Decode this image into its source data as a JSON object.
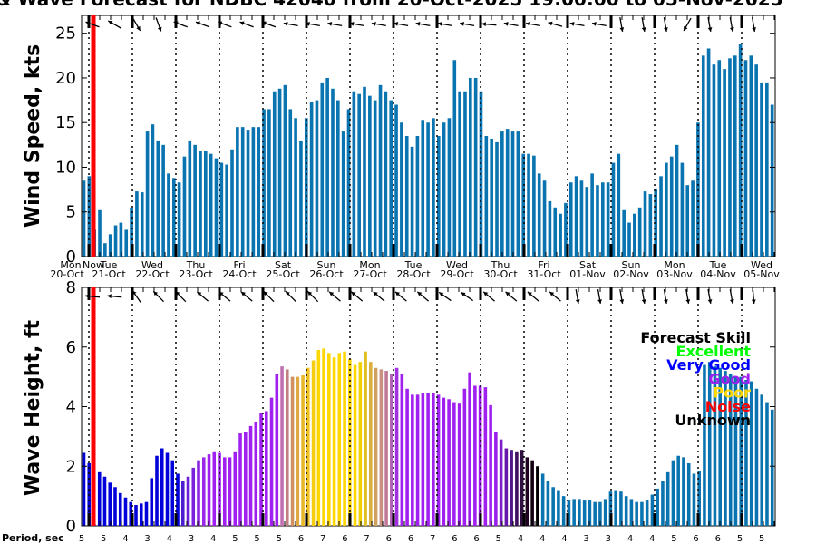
{
  "chart_data": [
    {
      "type": "bar",
      "title": "& Wave Forecast for NDBC 42040 from 20-Oct-2025 19:00:00 to 05-Nov-2025",
      "ylabel": "Wind Speed, kts",
      "ylim": [
        0,
        27
      ],
      "yticks": [
        0,
        5,
        10,
        15,
        20,
        25
      ],
      "day_labels": [
        {
          "day": "Mon",
          "date": "20-Oct"
        },
        {
          "day": "Tue",
          "date": "21-Oct"
        },
        {
          "day": "Wed",
          "date": "22-Oct"
        },
        {
          "day": "Thu",
          "date": "23-Oct"
        },
        {
          "day": "Fri",
          "date": "24-Oct"
        },
        {
          "day": "Sat",
          "date": "25-Oct"
        },
        {
          "day": "Sun",
          "date": "26-Oct"
        },
        {
          "day": "Mon",
          "date": "27-Oct"
        },
        {
          "day": "Tue",
          "date": "28-Oct"
        },
        {
          "day": "Wed",
          "date": "29-Oct"
        },
        {
          "day": "Thu",
          "date": "30-Oct"
        },
        {
          "day": "Fri",
          "date": "31-Oct"
        },
        {
          "day": "Sat",
          "date": "01-Nov"
        },
        {
          "day": "Sun",
          "date": "02-Nov"
        },
        {
          "day": "Mon",
          "date": "03-Nov"
        },
        {
          "day": "Tue",
          "date": "04-Nov"
        },
        {
          "day": "Wed",
          "date": "05-Nov"
        }
      ],
      "now_label": "Now",
      "bar_color": "#0a74b0",
      "values": [
        8.5,
        9,
        3,
        5.2,
        1.5,
        2.5,
        3.5,
        3.8,
        3,
        5.5,
        7.3,
        7.2,
        14,
        14.8,
        13,
        12.5,
        9.3,
        8.8,
        8.3,
        11.2,
        13,
        12.5,
        11.8,
        11.8,
        11.5,
        11,
        10.5,
        10.3,
        12,
        14.5,
        14.5,
        14.2,
        14.5,
        14.5,
        16.5,
        16.5,
        18.5,
        18.8,
        19.2,
        16.5,
        15.5,
        13,
        15.5,
        17.3,
        17.5,
        19.5,
        20,
        18.8,
        17.5,
        14,
        16.5,
        18.5,
        18.2,
        19,
        18,
        17.5,
        19.2,
        18.5,
        17.5,
        17,
        15,
        13.5,
        12.3,
        13.5,
        15.3,
        15,
        15.5,
        13.5,
        15,
        15.5,
        22,
        18.5,
        18.5,
        20,
        20,
        18.5,
        13.5,
        13.2,
        12.8,
        14,
        14.3,
        14,
        14,
        11.5,
        11.5,
        11.3,
        9.3,
        8.5,
        6.2,
        5.5,
        4.8,
        6,
        8.3,
        9,
        8.5,
        7.8,
        9.3,
        8,
        8.3,
        8.3,
        10.5,
        11.5,
        5.2,
        3.8,
        4.8,
        5.5,
        7.3,
        7,
        7.5,
        9,
        10.5,
        11.2,
        12.5,
        10.5,
        8,
        8.5,
        15,
        22.5,
        23.3,
        21.5,
        22,
        21,
        22.2,
        22.5,
        23.8,
        22,
        22.5,
        21.5,
        19.5,
        19.5,
        17
      ]
    },
    {
      "type": "bar",
      "ylabel": "Wave Height, ft",
      "ylim": [
        0,
        8
      ],
      "yticks": [
        0,
        2,
        4,
        6,
        8
      ],
      "xlabel": "Period, sec",
      "period_ticks": [
        5,
        5,
        4,
        3,
        4,
        3,
        4,
        5,
        5,
        5,
        6,
        7,
        6,
        7,
        6,
        6,
        7,
        6,
        6,
        5,
        4,
        4,
        4,
        3,
        3,
        4,
        4,
        5,
        6,
        6,
        5,
        5
      ],
      "legend": {
        "title": "Forecast Skill",
        "entries": [
          {
            "label": "Excellent",
            "color": "#00ff00"
          },
          {
            "label": "Very Good",
            "color": "#0000ff"
          },
          {
            "label": "Good",
            "color": "#a020f0"
          },
          {
            "label": "Poor",
            "color": "#ffd700"
          },
          {
            "label": "Noise",
            "color": "#ff0000"
          },
          {
            "label": "Unknown",
            "color": "#000000"
          }
        ]
      },
      "values": [
        2.45,
        2.1,
        0.05,
        1.8,
        1.65,
        1.45,
        1.3,
        1.1,
        0.95,
        0.8,
        0.7,
        0.75,
        0.8,
        1.6,
        2.35,
        2.6,
        2.45,
        2.2,
        1.75,
        1.5,
        1.65,
        1.95,
        2.2,
        2.3,
        2.4,
        2.5,
        2.45,
        2.3,
        2.3,
        2.5,
        3.1,
        3.15,
        3.35,
        3.5,
        3.8,
        3.85,
        4.3,
        5.1,
        5.35,
        5.25,
        5.0,
        5.0,
        5.05,
        5.3,
        5.55,
        5.9,
        5.95,
        5.8,
        5.65,
        5.8,
        5.85,
        5.6,
        5.4,
        5.5,
        5.85,
        5.5,
        5.3,
        5.25,
        5.2,
        5.1,
        5.3,
        5.1,
        4.6,
        4.4,
        4.4,
        4.45,
        4.45,
        4.45,
        4.4,
        4.3,
        4.25,
        4.15,
        4.1,
        4.6,
        5.15,
        4.7,
        4.7,
        4.65,
        4.05,
        3.15,
        2.9,
        2.6,
        2.55,
        2.5,
        2.55,
        2.3,
        2.2,
        2.0,
        1.75,
        1.5,
        1.3,
        1.2,
        1.0,
        0.85,
        0.9,
        0.9,
        0.85,
        0.85,
        0.8,
        0.8,
        0.9,
        1.15,
        1.2,
        1.15,
        1.0,
        0.9,
        0.8,
        0.8,
        0.85,
        1.05,
        1.25,
        1.5,
        1.8,
        2.2,
        2.35,
        2.3,
        2.1,
        1.75,
        1.85,
        5.4,
        5.5,
        5.35,
        5.3,
        5.2,
        5.1,
        5.0,
        5.0,
        4.9,
        4.85,
        4.6,
        4.4,
        4.15,
        3.9
      ],
      "skill_colors": [
        "#0000d8",
        "#0000d8",
        "#0000d8",
        "#0000d8",
        "#0000d8",
        "#0000d8",
        "#0000d8",
        "#0000d8",
        "#0000d8",
        "#0000d8",
        "#0000d8",
        "#0000d8",
        "#0000d8",
        "#0000d8",
        "#0000d8",
        "#0000d8",
        "#0000d8",
        "#0000d8",
        "#0000d8",
        "#4a1ed0",
        "#6a20d8",
        "#7a22dc",
        "#8a24e0",
        "#9a28e8",
        "#a020f0",
        "#a020f0",
        "#a020f0",
        "#a020f0",
        "#a020f0",
        "#a020f0",
        "#a020f0",
        "#a020f0",
        "#a020f0",
        "#a020f0",
        "#a020f0",
        "#a020f0",
        "#a020f0",
        "#a020f0",
        "#c070b0",
        "#c08080",
        "#d09060",
        "#e0a840",
        "#e8b828",
        "#f0c020",
        "#f4cc10",
        "#ffd700",
        "#ffd700",
        "#ffd700",
        "#ffd700",
        "#ffd700",
        "#ffd700",
        "#ffd700",
        "#ffd700",
        "#f0d000",
        "#e0c020",
        "#d8b040",
        "#d0a060",
        "#c89080",
        "#c07898",
        "#b060b8",
        "#a030e0",
        "#a020f0",
        "#a020f0",
        "#a020f0",
        "#a020f0",
        "#a020f0",
        "#a020f0",
        "#a020f0",
        "#a020f0",
        "#a020f0",
        "#a020f0",
        "#a020f0",
        "#a020f0",
        "#a020f0",
        "#a020f0",
        "#a020f0",
        "#a020f0",
        "#a020f0",
        "#a020f0",
        "#9820e8",
        "#8020c8",
        "#6818a8",
        "#501888",
        "#401060",
        "#301040",
        "#200020",
        "#100010",
        "#000000",
        "#0a74b0",
        "#0a74b0",
        "#0a74b0",
        "#0a74b0",
        "#0a74b0",
        "#0a74b0",
        "#0a74b0",
        "#0a74b0",
        "#0a74b0",
        "#0a74b0",
        "#0a74b0",
        "#0a74b0",
        "#0a74b0",
        "#0a74b0",
        "#0a74b0",
        "#0a74b0",
        "#0a74b0",
        "#0a74b0",
        "#0a74b0",
        "#0a74b0",
        "#0a74b0",
        "#0a74b0",
        "#0a74b0",
        "#0a74b0",
        "#0a74b0",
        "#0a74b0",
        "#0a74b0",
        "#0a74b0",
        "#0a74b0",
        "#0a74b0",
        "#0a74b0",
        "#0a74b0",
        "#0a74b0",
        "#0a74b0",
        "#0a74b0",
        "#0a74b0",
        "#0a74b0",
        "#0a74b0",
        "#0a74b0",
        "#0a74b0",
        "#0a74b0",
        "#0a74b0",
        "#0a74b0",
        "#0a74b0",
        "#0a74b0",
        "#0a74b0",
        "#0a74b0"
      ]
    }
  ]
}
